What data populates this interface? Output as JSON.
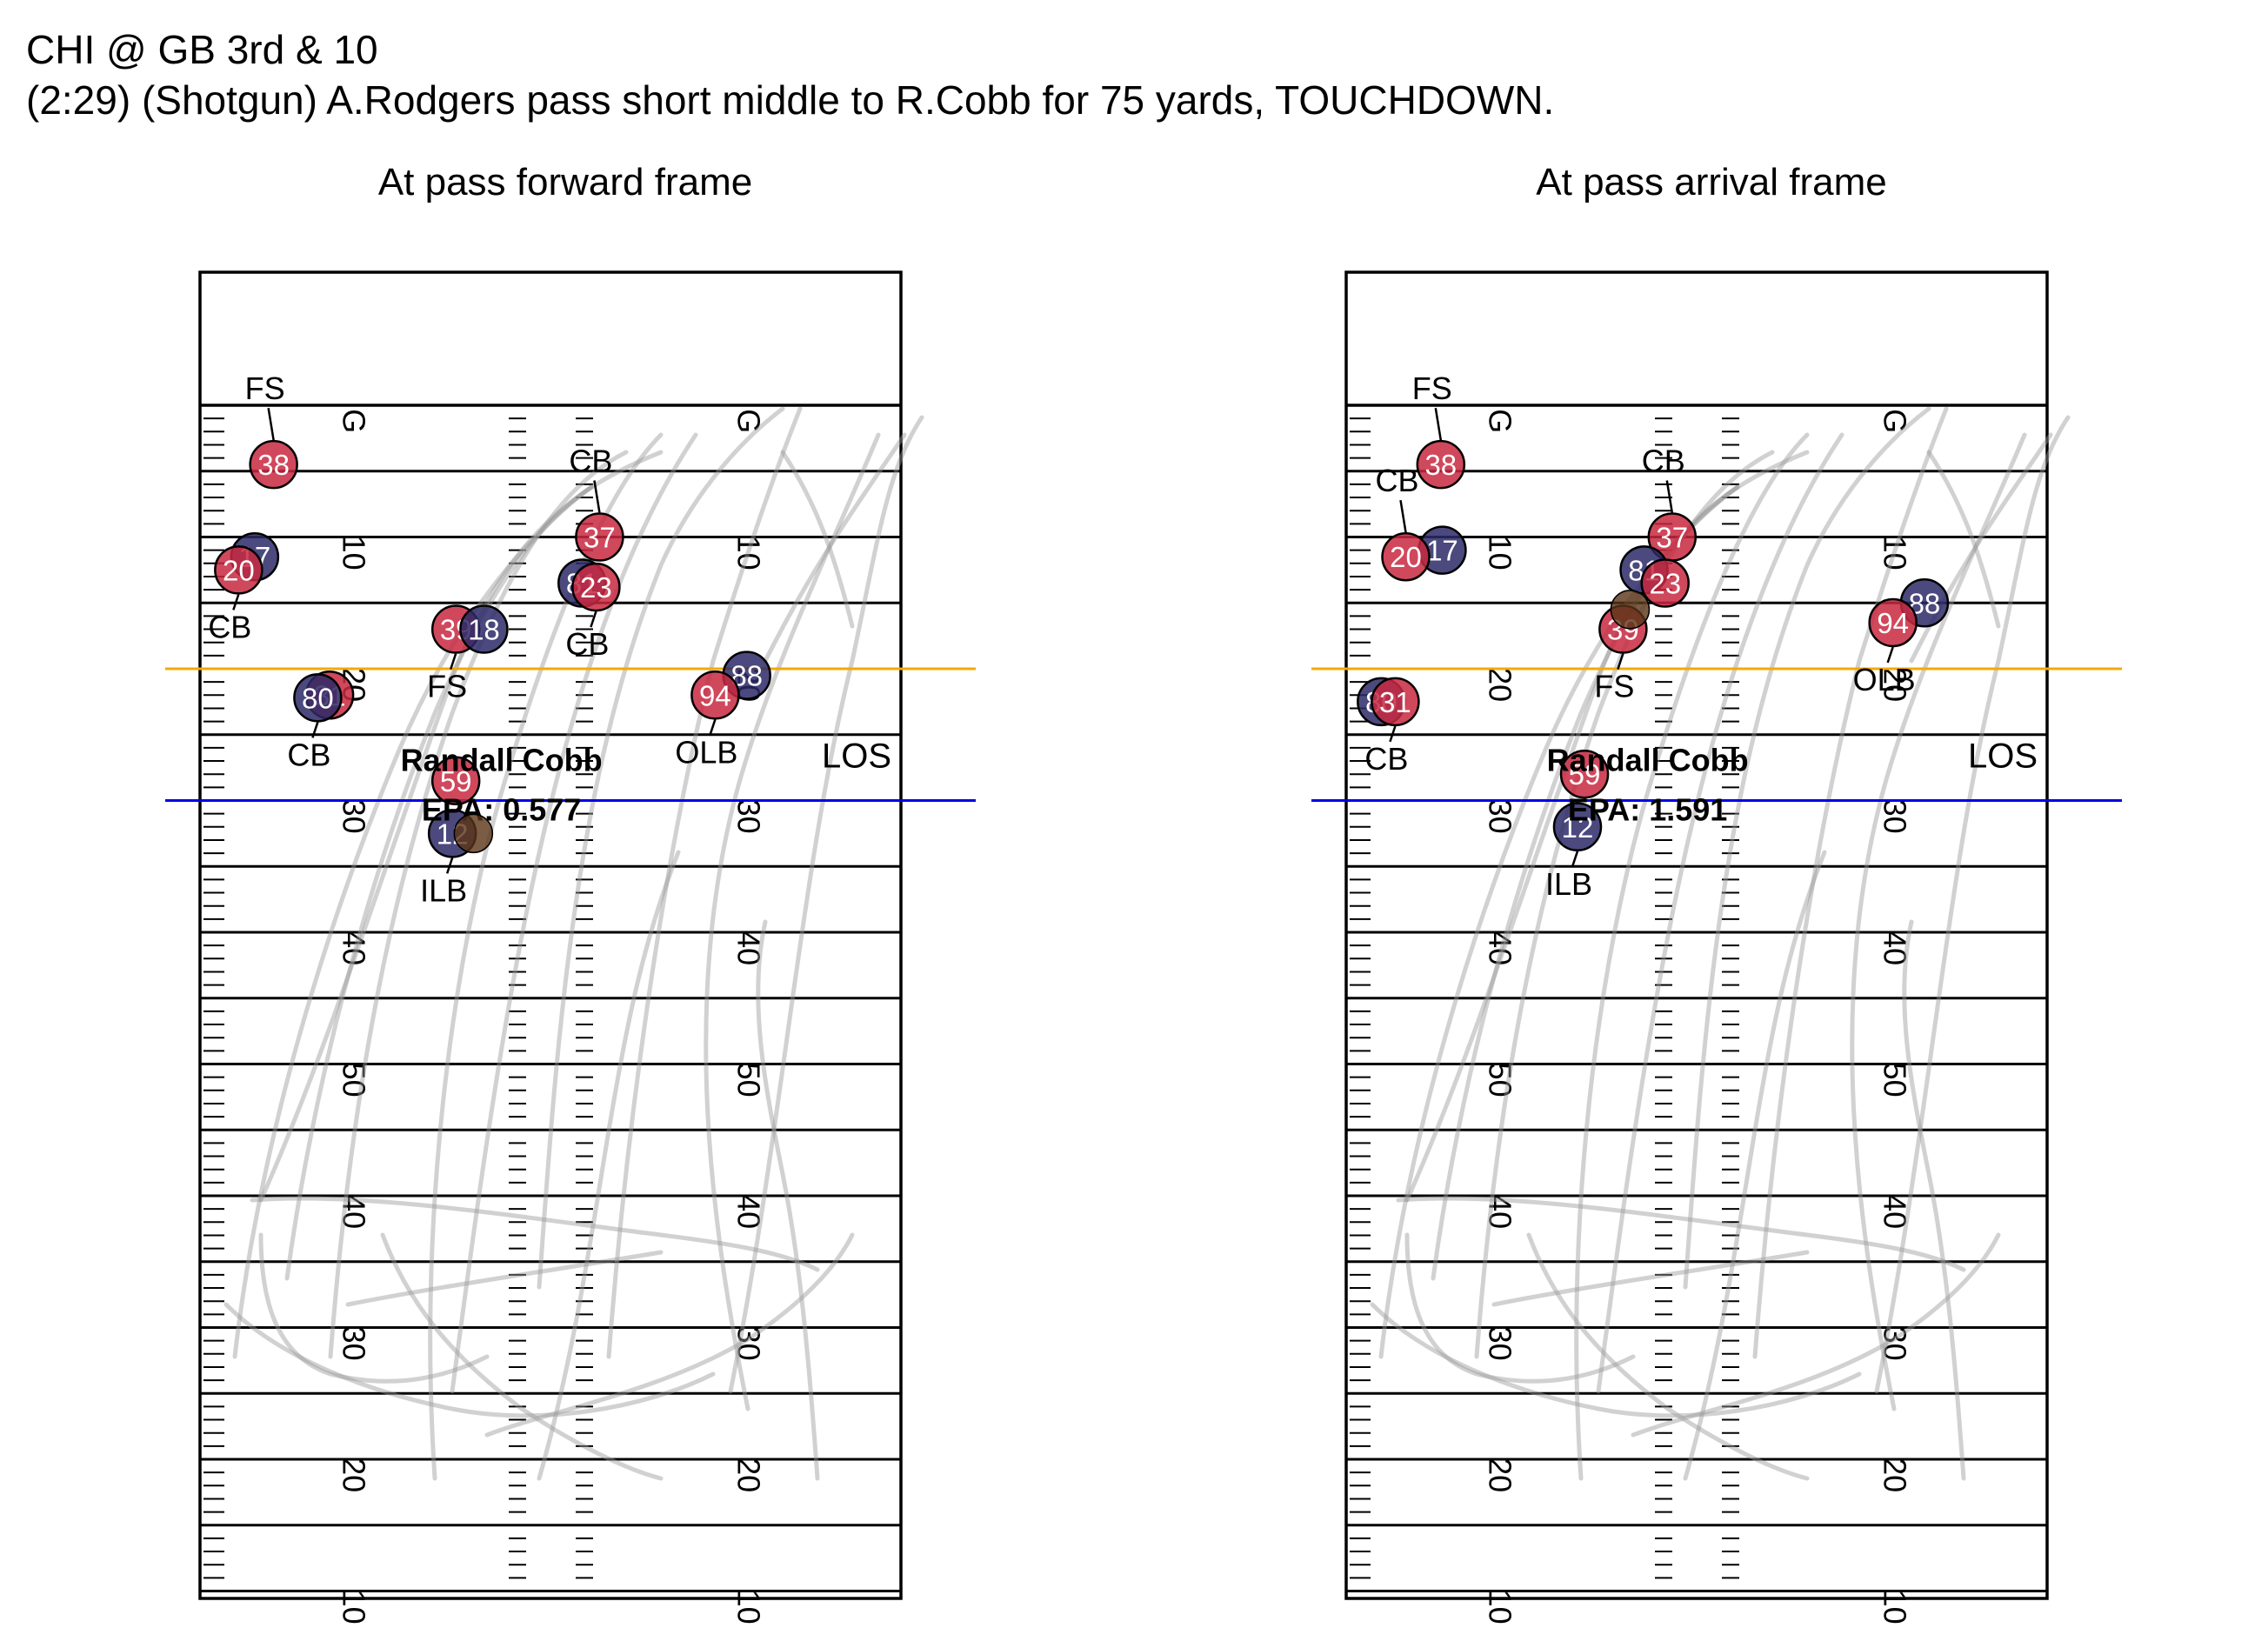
{
  "header": {
    "game": "CHI @ GB 3rd & 10",
    "description": "(2:29) (Shotgun) A.Rodgers pass short middle to R.Cobb for 75 yards, TOUCHDOWN."
  },
  "colors": {
    "home": "#c8283f",
    "away": "#2c2966",
    "football": "#5a3417",
    "line_of_scrimmage": "#0000e6",
    "first_down": "#f4a900",
    "track": "#9a9a9a"
  },
  "field": {
    "yard_labels_left": [
      "G",
      "10",
      "20",
      "30",
      "40",
      "50",
      "40",
      "30",
      "20",
      "10"
    ],
    "yard_labels_right": [
      "G",
      "10",
      "20",
      "30",
      "40",
      "50",
      "40",
      "30",
      "20",
      "10"
    ],
    "los_label": "LOS"
  },
  "panels": [
    {
      "title": "At pass forward frame",
      "receiver": "Randall Cobb",
      "epa": "EPA: 0.577",
      "players": [
        {
          "jersey": "38",
          "team": "home",
          "role": "FS",
          "yard": 45.5,
          "x": 10.5
        },
        {
          "jersey": "17",
          "team": "away",
          "role": "",
          "yard": 38.5,
          "x": 7.8
        },
        {
          "jersey": "20",
          "team": "home",
          "role": "CB",
          "yard": 37.5,
          "x": 5.5
        },
        {
          "jersey": "37",
          "team": "home",
          "role": "CB",
          "yard": 40.0,
          "x": 57.0
        },
        {
          "jersey": "81",
          "team": "away",
          "role": "",
          "yard": 36.5,
          "x": 54.5
        },
        {
          "jersey": "23",
          "team": "home",
          "role": "CB",
          "yard": 36.2,
          "x": 56.5
        },
        {
          "jersey": "39",
          "team": "home",
          "role": "FS",
          "yard": 33.0,
          "x": 36.5
        },
        {
          "jersey": "18",
          "team": "away",
          "role": "",
          "yard": 33.0,
          "x": 40.5
        },
        {
          "jersey": "31",
          "team": "home",
          "role": "",
          "yard": 28.0,
          "x": 18.5
        },
        {
          "jersey": "80",
          "team": "away",
          "role": "CB",
          "yard": 27.8,
          "x": 16.8
        },
        {
          "jersey": "88",
          "team": "away",
          "role": "",
          "yard": 29.5,
          "x": 78.0
        },
        {
          "jersey": "94",
          "team": "home",
          "role": "OLB",
          "yard": 28.0,
          "x": 73.5
        },
        {
          "jersey": "59",
          "team": "home",
          "role": "",
          "yard": 21.5,
          "x": 36.5
        },
        {
          "jersey": "12",
          "team": "away",
          "role": "ILB",
          "yard": 17.5,
          "x": 36.0
        }
      ]
    },
    {
      "title": "At pass arrival frame",
      "receiver": "Randall Cobb",
      "epa": "EPA: 1.591",
      "players": [
        {
          "jersey": "38",
          "team": "home",
          "role": "FS",
          "yard": 45.5,
          "x": 13.5
        },
        {
          "jersey": "17",
          "team": "away",
          "role": "",
          "yard": 39.0,
          "x": 13.7
        },
        {
          "jersey": "20",
          "team": "home",
          "role": "CB",
          "yard": 38.5,
          "x": 8.5
        },
        {
          "jersey": "37",
          "team": "home",
          "role": "CB",
          "yard": 40.0,
          "x": 46.5
        },
        {
          "jersey": "81",
          "team": "away",
          "role": "",
          "yard": 37.5,
          "x": 42.5
        },
        {
          "jersey": "23",
          "team": "home",
          "role": "",
          "yard": 36.5,
          "x": 45.5
        },
        {
          "jersey": "39",
          "team": "home",
          "role": "FS",
          "yard": 33.0,
          "x": 39.5
        },
        {
          "jersey": "88",
          "team": "away",
          "role": "",
          "yard": 35.0,
          "x": 82.5
        },
        {
          "jersey": "94",
          "team": "home",
          "role": "OLB",
          "yard": 33.5,
          "x": 78.0
        },
        {
          "jersey": "80",
          "team": "away",
          "role": "",
          "yard": 27.5,
          "x": 5.0
        },
        {
          "jersey": "31",
          "team": "home",
          "role": "CB",
          "yard": 27.5,
          "x": 7.0
        },
        {
          "jersey": "59",
          "team": "home",
          "role": "",
          "yard": 22.0,
          "x": 34.0
        },
        {
          "jersey": "12",
          "team": "away",
          "role": "ILB",
          "yard": 18.0,
          "x": 33.0
        }
      ]
    }
  ]
}
